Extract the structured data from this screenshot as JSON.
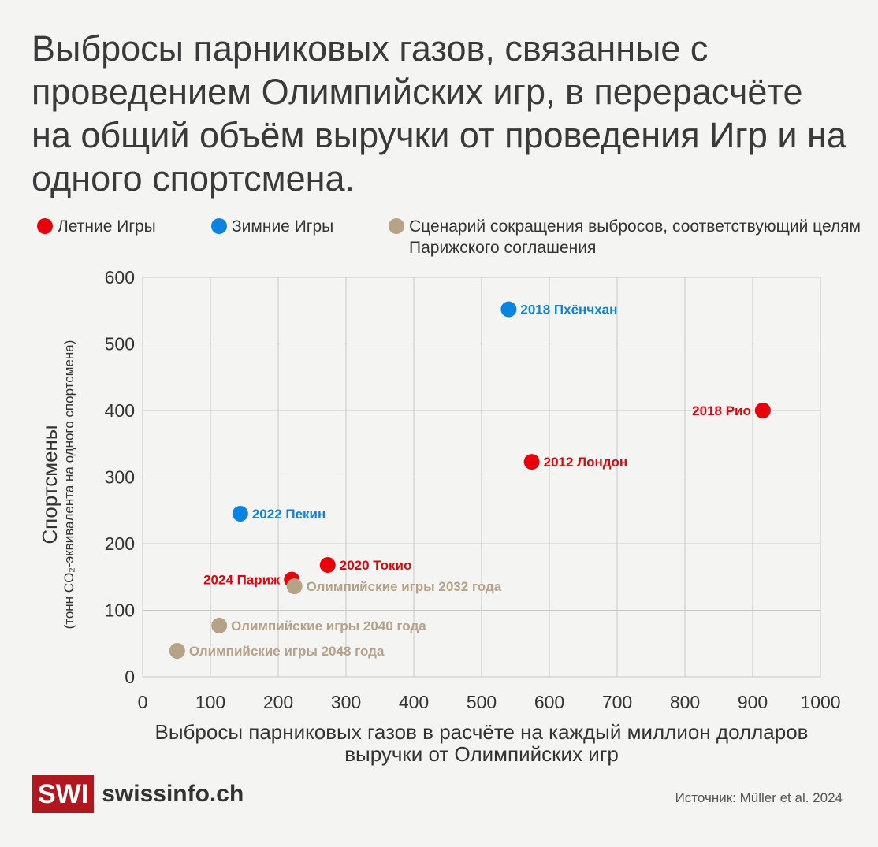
{
  "title": "Выбросы парниковых газов, связанные с проведением Олимпийских игр, в перерасчёте на общий объём выручки от проведения Игр и на одного спортсмена.",
  "legend": [
    {
      "label": "Летние Игры",
      "color": "#e8000b"
    },
    {
      "label": "Зимние Игры",
      "color": "#0a84e0"
    },
    {
      "label": "Сценарий сокращения выбросов, соответствующий целям Парижского соглашения",
      "color": "#b5a287"
    }
  ],
  "chart_data": {
    "type": "scatter",
    "xlabel": "Выбросы парниковых газов в расчёте на каждый миллион долларов выручки от Олимпийских игр",
    "ylabel": "Спортсмены",
    "ylabel_sub": "(тонн CO₂-эквивалента на одного спортсмена)",
    "xlim": [
      0,
      1000
    ],
    "ylim": [
      0,
      600
    ],
    "xticks": [
      0,
      100,
      200,
      300,
      400,
      500,
      600,
      700,
      800,
      900,
      1000
    ],
    "yticks": [
      0,
      100,
      200,
      300,
      400,
      500,
      600
    ],
    "grid": true,
    "legend_position": "top",
    "points": [
      {
        "label": "2018 Пхёнчхан",
        "x": 540,
        "y": 552,
        "group": "Зимние Игры",
        "color": "#0a84e0",
        "label_position": "right"
      },
      {
        "label": "2018 Рио",
        "x": 915,
        "y": 400,
        "group": "Летние Игры",
        "color": "#e8000b",
        "label_position": "left"
      },
      {
        "label": "2012 Лондон",
        "x": 574,
        "y": 323,
        "group": "Летние Игры",
        "color": "#e8000b",
        "label_position": "right"
      },
      {
        "label": "2022 Пекин",
        "x": 144,
        "y": 245,
        "group": "Зимние Игры",
        "color": "#0a84e0",
        "label_position": "right"
      },
      {
        "label": "2020 Токио",
        "x": 273,
        "y": 168,
        "group": "Летние Игры",
        "color": "#e8000b",
        "label_position": "right"
      },
      {
        "label": "2024 Париж",
        "x": 220,
        "y": 146,
        "group": "Летние Игры",
        "color": "#e8000b",
        "label_position": "left"
      },
      {
        "label": "Олимпийские игры 2032 года",
        "x": 224,
        "y": 136,
        "group": "Сценарий",
        "color": "#b5a287",
        "label_position": "right"
      },
      {
        "label": "Олимпийские игры 2040 года",
        "x": 113,
        "y": 77,
        "group": "Сценарий",
        "color": "#b5a287",
        "label_position": "right"
      },
      {
        "label": "Олимпийские игры 2048 года",
        "x": 51,
        "y": 39,
        "group": "Сценарий",
        "color": "#b5a287",
        "label_position": "right"
      }
    ]
  },
  "logo": {
    "mark": "SWI",
    "text": "swissinfo.ch"
  },
  "source": "Источник: Müller et al. 2024"
}
